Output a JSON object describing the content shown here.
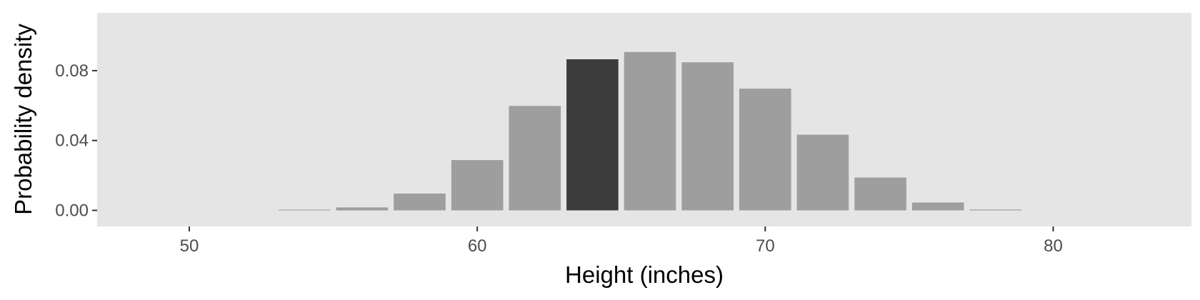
{
  "chart_data": {
    "type": "bar",
    "xlabel": "Height (inches)",
    "ylabel": "Probability density",
    "xlim": [
      46.8,
      84.8
    ],
    "ylim": [
      -0.0092,
      0.1131
    ],
    "x_ticks": [
      "50",
      "60",
      "70",
      "80"
    ],
    "x_tick_values": [
      50,
      60,
      70,
      80
    ],
    "y_ticks": [
      "0.00",
      "0.04",
      "0.08"
    ],
    "y_tick_values": [
      0,
      0.04,
      0.08
    ],
    "bin_width": 2,
    "grid": false,
    "legend": "none",
    "bars": [
      {
        "x": 50,
        "value": 0
      },
      {
        "x": 52,
        "value": 0
      },
      {
        "x": 54,
        "value": 0.0004,
        "highlight": false
      },
      {
        "x": 56,
        "value": 0.0017,
        "highlight": false
      },
      {
        "x": 58,
        "value": 0.0096,
        "highlight": false
      },
      {
        "x": 60,
        "value": 0.0288,
        "highlight": false
      },
      {
        "x": 62,
        "value": 0.0598,
        "highlight": false
      },
      {
        "x": 64,
        "value": 0.0865,
        "highlight": true
      },
      {
        "x": 66,
        "value": 0.0907,
        "highlight": false
      },
      {
        "x": 68,
        "value": 0.0848,
        "highlight": false
      },
      {
        "x": 70,
        "value": 0.0697,
        "highlight": false
      },
      {
        "x": 72,
        "value": 0.0433,
        "highlight": false
      },
      {
        "x": 74,
        "value": 0.0188,
        "highlight": false
      },
      {
        "x": 76,
        "value": 0.0045,
        "highlight": false
      },
      {
        "x": 78,
        "value": 0.0005,
        "highlight": false
      }
    ],
    "colors": {
      "bar": "#9e9e9e",
      "highlight": "#3c3c3c",
      "panel": "#e5e5e5"
    }
  }
}
